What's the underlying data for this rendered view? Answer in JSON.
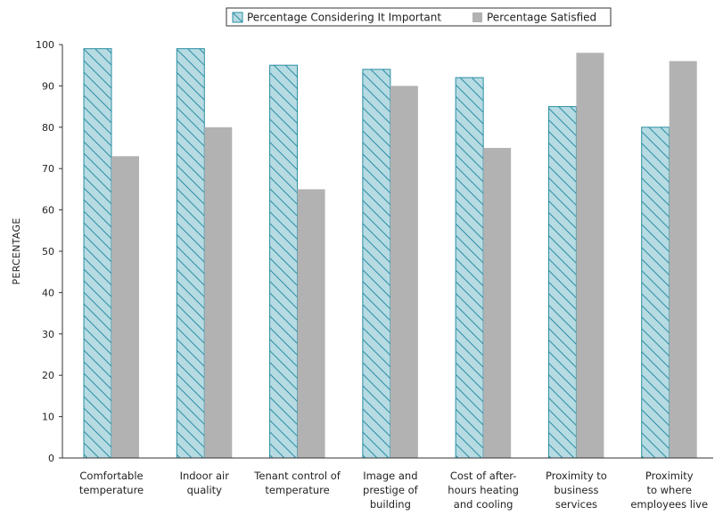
{
  "chart_data": {
    "type": "bar",
    "ylabel": "PERCENTAGE",
    "ylim": [
      0,
      100
    ],
    "yticks": [
      0,
      10,
      20,
      30,
      40,
      50,
      60,
      70,
      80,
      90,
      100
    ],
    "legend_position": "top-right",
    "grid": false,
    "categories": [
      [
        "Comfortable",
        "temperature"
      ],
      [
        "Indoor air",
        "quality"
      ],
      [
        "Tenant control of",
        "temperature"
      ],
      [
        "Image and",
        "prestige of",
        "building"
      ],
      [
        "Cost of after-",
        "hours heating",
        "and cooling"
      ],
      [
        "Proximity to",
        "business",
        "services"
      ],
      [
        "Proximity",
        "to where",
        "employees live"
      ]
    ],
    "series": [
      {
        "name": "Percentage Considering It Important",
        "color": "#b7dbe3",
        "stroke": "#2a8fa3",
        "pattern": "diagonal-hatch",
        "values": [
          99,
          99,
          95,
          94,
          92,
          85,
          80
        ]
      },
      {
        "name": "Percentage Satisfied",
        "color": "#b2b2b2",
        "values": [
          73,
          80,
          65,
          90,
          75,
          98,
          96
        ]
      }
    ]
  }
}
